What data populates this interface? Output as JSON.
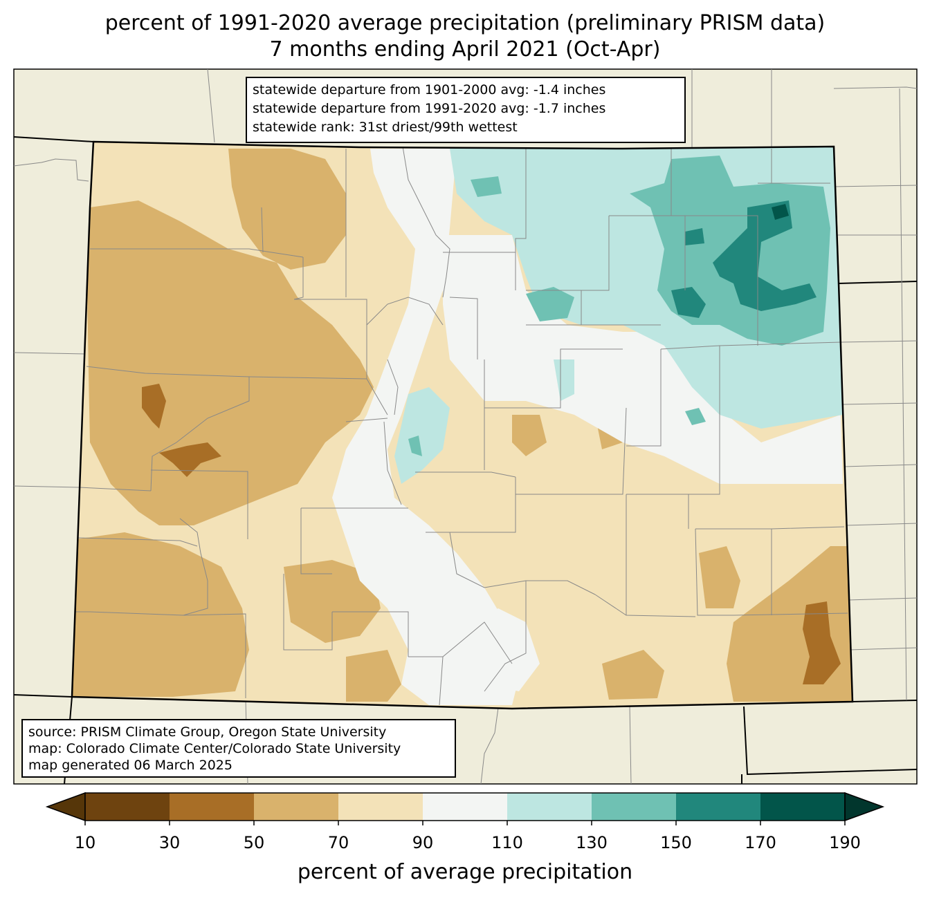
{
  "title": {
    "line1": "percent of 1991-2020 average precipitation (preliminary PRISM data)",
    "line2": "7 months ending April 2021 (Oct-Apr)"
  },
  "stats_box": {
    "line1": "statewide departure from 1901-2000 avg: -1.4 inches",
    "line2": "statewide departure from 1991-2020 avg: -1.7 inches",
    "line3": "statewide rank: 31st driest/99th wettest"
  },
  "credits_box": {
    "line1": "source: PRISM Climate Group, Oregon State University",
    "line2": "map: Colorado Climate Center/Colorado State University",
    "line3": "map generated 06 March 2025"
  },
  "colorbar": {
    "label": "percent of average precipitation",
    "ticks": [
      "10",
      "30",
      "50",
      "70",
      "90",
      "110",
      "130",
      "150",
      "170",
      "190"
    ],
    "bins": [
      {
        "range": "10-30",
        "color": "#6e430f"
      },
      {
        "range": "30-50",
        "color": "#a86e26"
      },
      {
        "range": "50-70",
        "color": "#d9b26c"
      },
      {
        "range": "70-90",
        "color": "#f3e2b8"
      },
      {
        "range": "90-110",
        "color": "#f3f5f3"
      },
      {
        "range": "110-130",
        "color": "#bde6e1"
      },
      {
        "range": "130-150",
        "color": "#6fc1b3"
      },
      {
        "range": "150-170",
        "color": "#21877c"
      },
      {
        "range": "170-190",
        "color": "#02554a"
      }
    ],
    "under_color": "#563609",
    "over_color": "#01362d"
  },
  "colors": {
    "land_background": "#efeddb",
    "state_border": "#000000",
    "county_border": "#888888"
  }
}
